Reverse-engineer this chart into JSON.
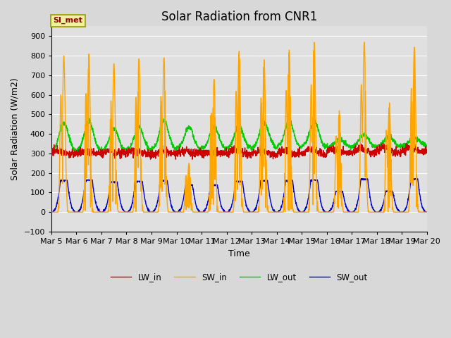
{
  "title": "Solar Radiation from CNR1",
  "xlabel": "Time",
  "ylabel": "Solar Radiation (W/m2)",
  "ylim": [
    -100,
    950
  ],
  "yticks": [
    -100,
    0,
    100,
    200,
    300,
    400,
    500,
    600,
    700,
    800,
    900
  ],
  "n_days": 15,
  "points_per_day": 144,
  "legend_labels": [
    "LW_in",
    "SW_in",
    "LW_out",
    "SW_out"
  ],
  "colors": {
    "LW_in": "#cc0000",
    "SW_in": "#ffa500",
    "LW_out": "#00cc00",
    "SW_out": "#0000cc"
  },
  "station_label": "SI_met",
  "bg_color": "#e0e0e0",
  "grid_color": "#ffffff",
  "title_fontsize": 12,
  "label_fontsize": 9,
  "tick_fontsize": 8,
  "line_width": 1.0,
  "sw_peaks": [
    800,
    810,
    760,
    785,
    790,
    250,
    680,
    825,
    780,
    830,
    870,
    520,
    870,
    560,
    845
  ],
  "lw_out_peaks": [
    455,
    465,
    425,
    435,
    470,
    435,
    435,
    440,
    460,
    465,
    470,
    375,
    395,
    385,
    385
  ],
  "sw_out_peaks": [
    163,
    165,
    155,
    158,
    162,
    140,
    140,
    158,
    162,
    163,
    165,
    107,
    170,
    108,
    170
  ],
  "day_labels": [
    "Mar 5",
    "Mar 6",
    "Mar 7",
    "Mar 8",
    "Mar 9",
    "Mar 10",
    "Mar 11",
    "Mar 12",
    "Mar 13",
    "Mar 14",
    "Mar 15",
    "Mar 16",
    "Mar 17",
    "Mar 18",
    "Mar 19",
    "Mar 20"
  ]
}
